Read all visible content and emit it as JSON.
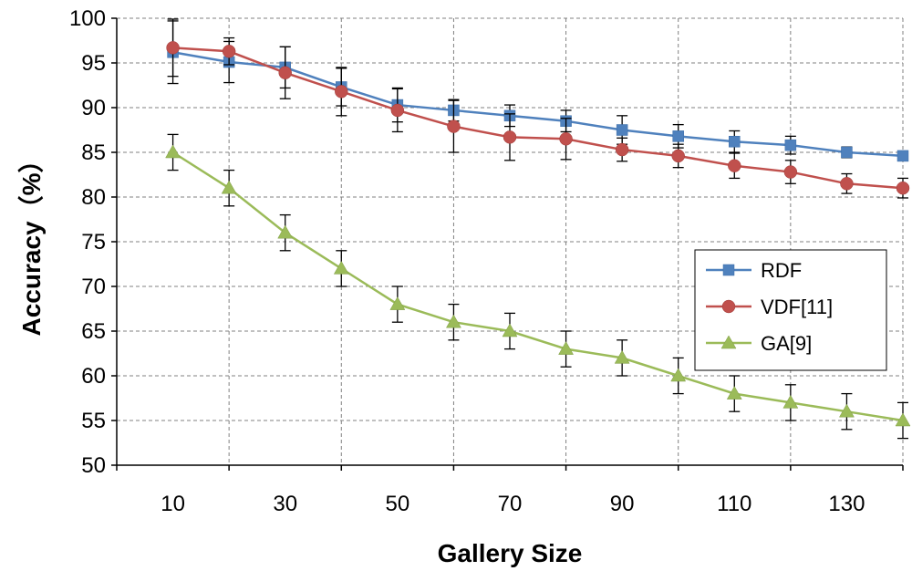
{
  "chart_data": {
    "type": "line",
    "xlabel": "Gallery Size",
    "ylabel": "Accuracy（%）",
    "ylim": [
      50,
      100
    ],
    "yticks": [
      50,
      55,
      60,
      65,
      70,
      75,
      80,
      85,
      90,
      95,
      100
    ],
    "xtick_labels": [
      "10",
      "30",
      "50",
      "70",
      "90",
      "110",
      "130"
    ],
    "x": [
      10,
      20,
      30,
      40,
      50,
      60,
      70,
      80,
      90,
      100,
      110,
      120,
      130,
      140
    ],
    "grid": true,
    "legend_position": "right",
    "series": [
      {
        "name": "RDF",
        "color": "#4f81bd",
        "marker": "square",
        "values": [
          96.2,
          95.1,
          94.5,
          92.3,
          90.3,
          89.7,
          89.1,
          88.5,
          87.5,
          86.8,
          86.2,
          85.8,
          85.0,
          84.6
        ],
        "err": [
          3.5,
          2.3,
          2.3,
          2.1,
          1.9,
          1.2,
          1.2,
          1.2,
          1.6,
          1.3,
          1.2,
          1.0,
          0.6,
          0.5
        ]
      },
      {
        "name": "VDF[11]",
        "color": "#c0504d",
        "marker": "circle",
        "values": [
          96.7,
          96.3,
          93.9,
          91.8,
          89.7,
          87.9,
          86.7,
          86.5,
          85.3,
          84.6,
          83.5,
          82.8,
          81.5,
          81.0
        ],
        "err": [
          3.2,
          1.5,
          2.9,
          2.7,
          2.4,
          2.9,
          2.6,
          2.3,
          1.3,
          1.3,
          1.4,
          1.3,
          1.1,
          1.1
        ]
      },
      {
        "name": "GA[9]",
        "color": "#9bbb59",
        "marker": "triangle",
        "values": [
          85,
          81,
          76,
          72,
          68,
          66,
          65,
          63,
          62,
          60,
          58,
          57,
          56,
          55
        ],
        "err": [
          2,
          2,
          2,
          2,
          2,
          2,
          2,
          2,
          2,
          2,
          2,
          2,
          2,
          2
        ]
      }
    ]
  }
}
